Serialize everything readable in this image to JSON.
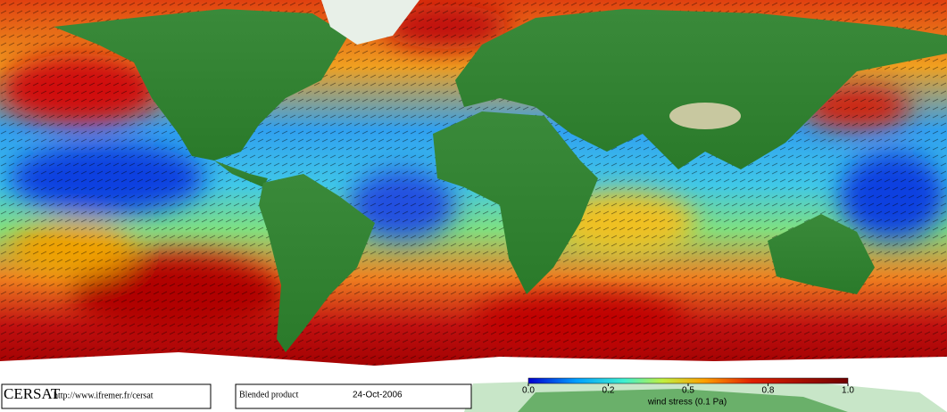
{
  "footer": {
    "logo": "CERSAT",
    "url": "http://www.ifremer.fr/cersat",
    "product": "Blended product",
    "date": "24-Oct-2006"
  },
  "colorbar": {
    "ticks": [
      {
        "value": 0,
        "label": "0.0"
      },
      {
        "value": 0.2,
        "label": "0.2"
      },
      {
        "value": 0.5,
        "label": "0.5"
      },
      {
        "value": 0.8,
        "label": "0.8"
      },
      {
        "value": 1,
        "label": "1.0"
      }
    ],
    "label": "wind stress (0.1 Pa)"
  }
}
